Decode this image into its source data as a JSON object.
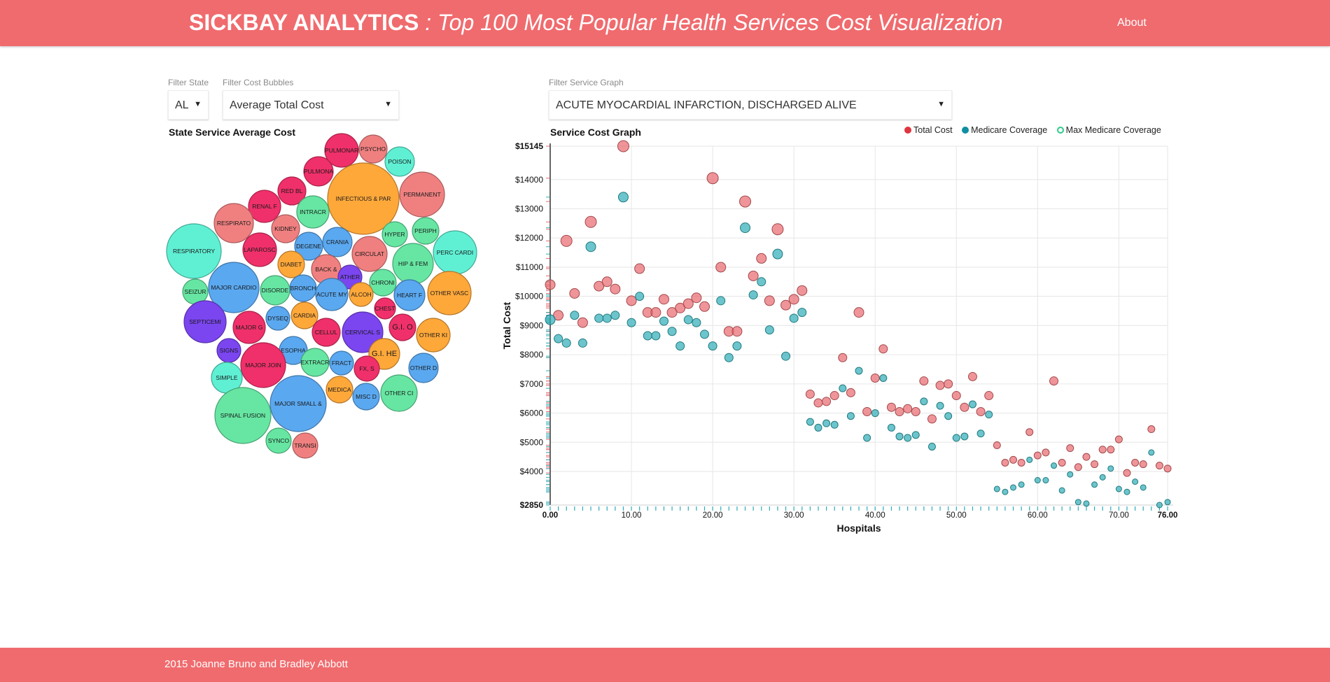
{
  "header": {
    "brand": "SICKBAY ANALYTICS",
    "subtitle": ": Top 100 Most Popular Health Services Cost Visualization",
    "nav": {
      "about": "About"
    }
  },
  "filters": {
    "state": {
      "label": "Filter State",
      "value": "AL"
    },
    "bubbles": {
      "label": "Filter Cost Bubbles",
      "value": "Average Total Cost"
    },
    "service": {
      "label": "Filter Service Graph",
      "value": "ACUTE MYOCARDIAL INFARCTION, DISCHARGED ALIVE"
    }
  },
  "bubble_panel": {
    "title": "State Service Average Cost",
    "palette": {
      "orange": "#ffa83a",
      "red": "#f08080",
      "pink": "#f0306a",
      "teal": "#5ff0d4",
      "green": "#66e6a2",
      "blue": "#5aa8f0",
      "purple": "#7b45f0"
    },
    "bubbles": [
      {
        "label": "PULMONAR",
        "color": "pink",
        "r": 24
      },
      {
        "label": "PSYCHO",
        "color": "red",
        "r": 20
      },
      {
        "label": "POISON",
        "color": "teal",
        "r": 21
      },
      {
        "label": "PULMONA",
        "color": "pink",
        "r": 21
      },
      {
        "label": "RED BL",
        "color": "pink",
        "r": 20
      },
      {
        "label": "INFECTIOUS & PAR",
        "color": "orange",
        "r": 51
      },
      {
        "label": "PERMANENT",
        "color": "red",
        "r": 32
      },
      {
        "label": "RENAL F",
        "color": "pink",
        "r": 23
      },
      {
        "label": "INTRACR",
        "color": "green",
        "r": 23
      },
      {
        "label": "RESPIRATO",
        "color": "red",
        "r": 28
      },
      {
        "label": "KIDNEY",
        "color": "red",
        "r": 20
      },
      {
        "label": "HYPER",
        "color": "green",
        "r": 18
      },
      {
        "label": "PERIPH",
        "color": "green",
        "r": 19
      },
      {
        "label": "CRANIA",
        "color": "blue",
        "r": 21
      },
      {
        "label": "DEGENE",
        "color": "blue",
        "r": 20
      },
      {
        "label": "RESPIRATORY",
        "color": "teal",
        "r": 39
      },
      {
        "label": "LAPAROSC",
        "color": "pink",
        "r": 24
      },
      {
        "label": "CIRCULAT",
        "color": "red",
        "r": 25
      },
      {
        "label": "HIP & FEM",
        "color": "green",
        "r": 29
      },
      {
        "label": "PERC CARDI",
        "color": "teal",
        "r": 31
      },
      {
        "label": "DIABET",
        "color": "orange",
        "r": 19
      },
      {
        "label": "BACK &",
        "color": "red",
        "r": 21
      },
      {
        "label": "ATHER",
        "color": "purple",
        "r": 17
      },
      {
        "label": "CHRONI",
        "color": "green",
        "r": 19
      },
      {
        "label": "SEIZUR",
        "color": "green",
        "r": 18
      },
      {
        "label": "MAJOR CARDIO",
        "color": "blue",
        "r": 36
      },
      {
        "label": "DISORDE",
        "color": "green",
        "r": 21
      },
      {
        "label": "BRONCH",
        "color": "blue",
        "r": 19
      },
      {
        "label": "ACUTE MY",
        "color": "blue",
        "r": 23
      },
      {
        "label": "ALCOH",
        "color": "orange",
        "r": 17
      },
      {
        "label": "HEART F",
        "color": "blue",
        "r": 22
      },
      {
        "label": "OTHER VASC",
        "color": "orange",
        "r": 31
      },
      {
        "label": "CHEST",
        "color": "pink",
        "r": 15
      },
      {
        "label": "SEPTICEMI",
        "color": "purple",
        "r": 30
      },
      {
        "label": "DYSEQ",
        "color": "blue",
        "r": 17
      },
      {
        "label": "CARDIA",
        "color": "orange",
        "r": 19
      },
      {
        "label": "MAJOR G",
        "color": "pink",
        "r": 23
      },
      {
        "label": "CELLUL",
        "color": "pink",
        "r": 20
      },
      {
        "label": "CERVICAL S",
        "color": "purple",
        "r": 29
      },
      {
        "label": "G.I. O",
        "color": "pink",
        "r": 19
      },
      {
        "label": "OTHER KI",
        "color": "orange",
        "r": 24
      },
      {
        "label": "ESOPHA",
        "color": "blue",
        "r": 20
      },
      {
        "label": "SIGNS",
        "color": "purple",
        "r": 17
      },
      {
        "label": "MAJOR JOIN",
        "color": "pink",
        "r": 32
      },
      {
        "label": "EXTRACR",
        "color": "green",
        "r": 20
      },
      {
        "label": "FRACT",
        "color": "blue",
        "r": 17
      },
      {
        "label": "G.I. HE",
        "color": "orange",
        "r": 22
      },
      {
        "label": "FX, S",
        "color": "pink",
        "r": 18
      },
      {
        "label": "OTHER D",
        "color": "blue",
        "r": 21
      },
      {
        "label": "SIMPLE",
        "color": "teal",
        "r": 22
      },
      {
        "label": "MEDICA",
        "color": "orange",
        "r": 19
      },
      {
        "label": "MISC D",
        "color": "blue",
        "r": 19
      },
      {
        "label": "OTHER CI",
        "color": "green",
        "r": 26
      },
      {
        "label": "MAJOR SMALL &",
        "color": "blue",
        "r": 40
      },
      {
        "label": "SPINAL FUSION",
        "color": "green",
        "r": 40
      },
      {
        "label": "SYNCO",
        "color": "green",
        "r": 18
      },
      {
        "label": "TRANSI",
        "color": "red",
        "r": 18
      }
    ]
  },
  "chart_data": {
    "type": "scatter",
    "title": "Service Cost Graph",
    "xlabel": "Hospitals",
    "ylabel": "Total Cost",
    "xlim": [
      0,
      76
    ],
    "ylim": [
      2850,
      15145
    ],
    "x_ticks": [
      "0.00",
      "10.00",
      "20.00",
      "30.00",
      "40.00",
      "50.00",
      "60.00",
      "70.00",
      "76.00"
    ],
    "y_ticks": [
      "$2850",
      "$4000",
      "$5000",
      "$6000",
      "$7000",
      "$8000",
      "$9000",
      "$10000",
      "$11000",
      "$12000",
      "$13000",
      "$14000",
      "$15145"
    ],
    "grid": true,
    "legend_position": "top-right",
    "series": [
      {
        "name": "Total Cost",
        "color": "#e8686d",
        "style": "filled",
        "x": [
          0,
          1,
          2,
          3,
          4,
          5,
          6,
          7,
          8,
          9,
          10,
          11,
          12,
          13,
          14,
          15,
          16,
          17,
          18,
          19,
          20,
          21,
          22,
          23,
          24,
          25,
          26,
          27,
          28,
          29,
          30,
          31,
          32,
          33,
          34,
          35,
          36,
          37,
          38,
          39,
          40,
          41,
          42,
          43,
          44,
          45,
          46,
          47,
          48,
          49,
          50,
          51,
          52,
          53,
          54,
          55,
          56,
          57,
          58,
          59,
          60,
          61,
          62,
          63,
          64,
          65,
          66,
          67,
          68,
          69,
          70,
          71,
          72,
          73,
          74,
          75,
          76
        ],
        "y": [
          10400,
          9350,
          11900,
          10100,
          9100,
          12550,
          10350,
          10500,
          10250,
          15145,
          9850,
          10950,
          9450,
          9450,
          9900,
          9450,
          9600,
          9750,
          9950,
          9650,
          14050,
          11000,
          8800,
          8800,
          13250,
          10700,
          11300,
          9850,
          12300,
          9700,
          9900,
          10200,
          6650,
          6350,
          6400,
          6600,
          7900,
          6700,
          9450,
          6050,
          7200,
          8200,
          6200,
          6050,
          6150,
          6050,
          7100,
          5800,
          6950,
          7000,
          6600,
          6200,
          7250,
          6050,
          6600,
          4900,
          4300,
          4400,
          4300,
          5350,
          4550,
          4650,
          7100,
          4300,
          4800,
          4150,
          4500,
          4250,
          4750,
          4750,
          5100,
          3950,
          4300,
          4250,
          5450,
          4200,
          4100
        ],
        "size": [
          7,
          7,
          8,
          7,
          7,
          8,
          7,
          7,
          7,
          8,
          7,
          7,
          7,
          7,
          7,
          7,
          7,
          7,
          7,
          7,
          8,
          7,
          7,
          7,
          8,
          7,
          7,
          7,
          8,
          7,
          7,
          7,
          6,
          6,
          6,
          6,
          6,
          6,
          7,
          6,
          6,
          6,
          6,
          6,
          6,
          6,
          6,
          6,
          6,
          6,
          6,
          6,
          6,
          6,
          6,
          5,
          5,
          5,
          5,
          5,
          5,
          5,
          6,
          5,
          5,
          5,
          5,
          5,
          5,
          5,
          5,
          5,
          5,
          5,
          5,
          5,
          5
        ]
      },
      {
        "name": "Medicare Coverage",
        "color": "#2eadb6",
        "style": "filled",
        "x": [
          0,
          1,
          2,
          3,
          4,
          5,
          6,
          7,
          8,
          9,
          10,
          11,
          12,
          13,
          14,
          15,
          16,
          17,
          18,
          19,
          20,
          21,
          22,
          23,
          24,
          25,
          26,
          27,
          28,
          29,
          30,
          31,
          32,
          33,
          34,
          35,
          36,
          37,
          38,
          39,
          40,
          41,
          42,
          43,
          44,
          45,
          46,
          47,
          48,
          49,
          50,
          51,
          52,
          53,
          54,
          55,
          56,
          57,
          58,
          59,
          60,
          61,
          62,
          63,
          64,
          65,
          66,
          67,
          68,
          69,
          70,
          71,
          72,
          73,
          74,
          75,
          76
        ],
        "y": [
          9200,
          8550,
          8400,
          9350,
          8400,
          11700,
          9250,
          9250,
          9350,
          13400,
          9100,
          10000,
          8650,
          8650,
          9150,
          8800,
          8300,
          9200,
          9100,
          8700,
          8300,
          9850,
          7900,
          8300,
          12350,
          10050,
          10500,
          8850,
          11450,
          7950,
          9250,
          9450,
          5700,
          5500,
          5650,
          5600,
          6850,
          5900,
          7450,
          5150,
          6000,
          7200,
          5500,
          5200,
          5150,
          5250,
          6400,
          4850,
          6250,
          5900,
          5150,
          5200,
          6300,
          5300,
          5950,
          3400,
          3300,
          3450,
          3550,
          4400,
          3700,
          3700,
          4200,
          3350,
          3900,
          2950,
          2900,
          3550,
          3800,
          4100,
          3400,
          3300,
          3650,
          3450,
          4650,
          2850,
          2950
        ],
        "size": [
          7,
          6,
          6,
          6,
          6,
          7,
          6,
          6,
          6,
          7,
          6,
          6,
          6,
          6,
          6,
          6,
          6,
          6,
          6,
          6,
          6,
          6,
          6,
          6,
          7,
          6,
          6,
          6,
          7,
          6,
          6,
          6,
          5,
          5,
          5,
          5,
          5,
          5,
          5,
          5,
          5,
          5,
          5,
          5,
          5,
          5,
          5,
          5,
          5,
          5,
          5,
          5,
          5,
          5,
          5,
          4,
          4,
          4,
          4,
          4,
          4,
          4,
          4,
          4,
          4,
          4,
          4,
          4,
          4,
          4,
          4,
          4,
          4,
          4,
          4,
          4,
          4
        ]
      },
      {
        "name": "Max Medicare Coverage",
        "color": "#2ecc8a",
        "style": "hollow",
        "x": [],
        "y": []
      }
    ]
  },
  "footer": {
    "text": "2015 Joanne Bruno and Bradley Abbott"
  }
}
